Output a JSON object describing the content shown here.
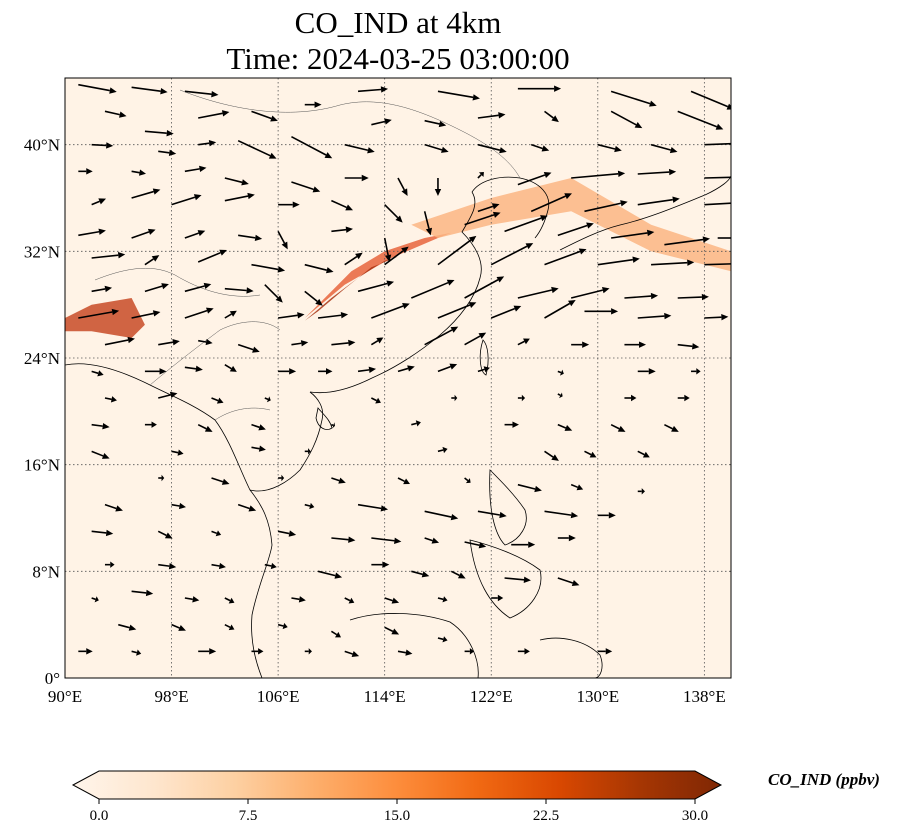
{
  "title": {
    "line1": "CO_IND at 4km",
    "line2": "Time: 2024-03-25 03:00:00"
  },
  "map": {
    "lon_ticks": [
      "90°E",
      "98°E",
      "106°E",
      "114°E",
      "122°E",
      "130°E",
      "138°E"
    ],
    "lat_ticks": [
      "40°N",
      "32°N",
      "24°N",
      "16°N",
      "8°N",
      "0°"
    ],
    "extent": {
      "lon": [
        90,
        140
      ],
      "lat": [
        0,
        45
      ]
    },
    "gridlines": true
  },
  "colorbar": {
    "label": "CO_IND (ppbv)",
    "ticks": [
      "0.0",
      "7.5",
      "15.0",
      "22.5",
      "30.0"
    ],
    "range": [
      0,
      30
    ],
    "extend": "both",
    "colormap": [
      "#fff5eb",
      "#fee6ce",
      "#fdd0a2",
      "#fdae6b",
      "#fd8d3c",
      "#f16913",
      "#d94801",
      "#a63603",
      "#7f2704"
    ]
  },
  "field": {
    "plume_polygons": [
      {
        "name": "main-plume",
        "color": "#e8643c",
        "lonlat": [
          [
            108,
            27
          ],
          [
            111,
            29.5
          ],
          [
            114.5,
            31.5
          ],
          [
            118,
            33
          ],
          [
            119,
            33.4
          ],
          [
            117,
            33
          ],
          [
            114,
            32
          ],
          [
            111.5,
            30.5
          ],
          [
            109,
            28
          ]
        ]
      },
      {
        "name": "main-plume-core",
        "color": "#a83212",
        "lonlat": [
          [
            108,
            26.8
          ],
          [
            110,
            28.5
          ],
          [
            112,
            30
          ],
          [
            114,
            31.3
          ],
          [
            115,
            31.6
          ],
          [
            113,
            30.8
          ],
          [
            111,
            29.2
          ],
          [
            109,
            27.5
          ]
        ]
      },
      {
        "name": "sichuan-west",
        "color": "#c84a26",
        "lonlat": [
          [
            90,
            27
          ],
          [
            92,
            28
          ],
          [
            95,
            28.5
          ],
          [
            96,
            26.5
          ],
          [
            95,
            25.5
          ],
          [
            92,
            26
          ],
          [
            90,
            26
          ]
        ]
      },
      {
        "name": "east-band",
        "color": "#fbb583",
        "lonlat": [
          [
            116,
            34
          ],
          [
            122,
            36
          ],
          [
            128,
            37.5
          ],
          [
            134,
            34
          ],
          [
            140,
            32
          ],
          [
            140,
            30.5
          ],
          [
            134,
            32
          ],
          [
            128,
            35
          ],
          [
            122,
            34
          ],
          [
            118,
            33
          ]
        ]
      }
    ]
  },
  "winds": {
    "vectors": [
      [
        91,
        44.5,
        3.2,
        -0.6
      ],
      [
        95,
        44.3,
        3.0,
        -0.4
      ],
      [
        99,
        44,
        2.8,
        -0.3
      ],
      [
        112,
        44,
        2.5,
        0.2
      ],
      [
        118,
        44,
        3.5,
        -0.6
      ],
      [
        124,
        44.2,
        3.6,
        0
      ],
      [
        131,
        44,
        3.8,
        -1.2
      ],
      [
        137,
        44,
        3.6,
        -1.5
      ],
      [
        93,
        42.5,
        1.8,
        -0.4
      ],
      [
        96,
        41,
        2.4,
        -0.2
      ],
      [
        100,
        42,
        2.6,
        0.5
      ],
      [
        104,
        42.5,
        2.2,
        -0.8
      ],
      [
        108,
        43,
        1.4,
        0
      ],
      [
        113,
        41.5,
        1.7,
        0.4
      ],
      [
        117,
        41.8,
        1.8,
        -0.4
      ],
      [
        121,
        42,
        2.3,
        0.3
      ],
      [
        126,
        42.5,
        1.2,
        -0.9
      ],
      [
        131,
        42.5,
        2.6,
        -1.4
      ],
      [
        136,
        42.5,
        3.8,
        -1.5
      ],
      [
        92,
        40,
        1.8,
        -0.1
      ],
      [
        97,
        39.5,
        1.5,
        -0.2
      ],
      [
        100,
        40,
        1.5,
        0.2
      ],
      [
        103,
        40.3,
        3.2,
        -1.5
      ],
      [
        107,
        40.6,
        3.4,
        -1.8
      ],
      [
        111,
        40,
        2.5,
        -0.6
      ],
      [
        117,
        40,
        2.0,
        -0.6
      ],
      [
        121,
        40,
        2.4,
        -0.6
      ],
      [
        125,
        40,
        1.5,
        -0.5
      ],
      [
        130,
        40,
        2.0,
        -0.5
      ],
      [
        134,
        40,
        2.2,
        -0.6
      ],
      [
        138,
        40,
        2.8,
        0.1
      ],
      [
        91,
        38,
        1.2,
        0
      ],
      [
        95,
        38,
        1.2,
        -0.2
      ],
      [
        99,
        38,
        1.8,
        0.3
      ],
      [
        102,
        37.5,
        2.0,
        -0.5
      ],
      [
        107,
        37.2,
        2.4,
        -0.8
      ],
      [
        111,
        37.5,
        2.0,
        0
      ],
      [
        115,
        37.5,
        0.8,
        -1.5
      ],
      [
        118,
        37.5,
        0,
        -1.5
      ],
      [
        121,
        37.5,
        0.5,
        0.5
      ],
      [
        124,
        37,
        2.8,
        1.0
      ],
      [
        128,
        37.5,
        4.5,
        0.4
      ],
      [
        133,
        37.8,
        3.2,
        0.2
      ],
      [
        138,
        37.5,
        3.8,
        0.1
      ],
      [
        92,
        35.5,
        1.2,
        0.5
      ],
      [
        95,
        36,
        2.4,
        0.7
      ],
      [
        98,
        35.5,
        2.5,
        0.8
      ],
      [
        102,
        35.8,
        2.5,
        0.5
      ],
      [
        106,
        35.5,
        1.8,
        0
      ],
      [
        110,
        35.8,
        1.8,
        -0.8
      ],
      [
        114,
        35.5,
        1.5,
        -1.5
      ],
      [
        117,
        35,
        0.5,
        -2.0
      ],
      [
        121,
        35,
        1.8,
        0.6
      ],
      [
        125,
        35,
        3.4,
        1.5
      ],
      [
        129,
        35,
        3.6,
        0.8
      ],
      [
        133,
        35.5,
        3.5,
        0.5
      ],
      [
        138,
        35.5,
        3.6,
        0.2
      ],
      [
        91,
        33.2,
        2.3,
        0.4
      ],
      [
        95,
        33,
        2.0,
        0.7
      ],
      [
        99,
        33,
        1.7,
        0.6
      ],
      [
        103,
        33.2,
        2.0,
        -0.3
      ],
      [
        106,
        33.5,
        0.8,
        -1.5
      ],
      [
        110,
        33.5,
        1.8,
        0.2
      ],
      [
        114,
        33,
        0.4,
        -2.0
      ],
      [
        120,
        34,
        3.0,
        1.0
      ],
      [
        123,
        33.5,
        3.6,
        1.3
      ],
      [
        127,
        33.2,
        3.0,
        1.0
      ],
      [
        131,
        33,
        3.6,
        0.5
      ],
      [
        135,
        32.5,
        3.8,
        0.5
      ],
      [
        139,
        33,
        1.8,
        0
      ],
      [
        92,
        31.5,
        2.8,
        0.3
      ],
      [
        96,
        31,
        1.2,
        0.8
      ],
      [
        100,
        31.2,
        2.4,
        1.0
      ],
      [
        104,
        31,
        2.8,
        -0.5
      ],
      [
        108,
        31,
        2.4,
        -0.6
      ],
      [
        111,
        31,
        1.5,
        1.0
      ],
      [
        114,
        31,
        2.0,
        1.5
      ],
      [
        118,
        31,
        3.2,
        2.4
      ],
      [
        122,
        31,
        3.5,
        1.8
      ],
      [
        126,
        31,
        3.5,
        1.3
      ],
      [
        130,
        31,
        3.5,
        0.5
      ],
      [
        134,
        31,
        3.6,
        0.2
      ],
      [
        138,
        31,
        3.4,
        0.1
      ],
      [
        92,
        29,
        1.7,
        0.3
      ],
      [
        96,
        29,
        2.0,
        0.6
      ],
      [
        99,
        29,
        2.2,
        0.6
      ],
      [
        102,
        29.2,
        2.4,
        -0.2
      ],
      [
        105,
        29.5,
        1.5,
        -1.5
      ],
      [
        108,
        29,
        1.5,
        -1.2
      ],
      [
        112,
        29,
        3.0,
        0.8
      ],
      [
        116,
        28.5,
        3.6,
        1.5
      ],
      [
        120,
        28.5,
        3.3,
        1.8
      ],
      [
        124,
        28.5,
        3.4,
        0.8
      ],
      [
        128,
        28.5,
        3.2,
        0.8
      ],
      [
        132,
        28.5,
        2.8,
        0.2
      ],
      [
        136,
        28.5,
        2.6,
        0.1
      ],
      [
        91,
        27,
        3.4,
        0.6
      ],
      [
        95,
        27,
        2.4,
        0.5
      ],
      [
        99,
        27,
        2.4,
        0.8
      ],
      [
        102,
        27,
        1.0,
        0.6
      ],
      [
        106,
        27,
        2.2,
        0.3
      ],
      [
        109,
        27,
        2.5,
        0.3
      ],
      [
        113,
        27,
        3.2,
        1.2
      ],
      [
        118,
        27,
        3.2,
        1.3
      ],
      [
        122,
        27,
        2.5,
        1.0
      ],
      [
        126,
        27,
        2.6,
        1.5
      ],
      [
        129,
        27.5,
        2.8,
        0
      ],
      [
        133,
        27,
        2.8,
        0.2
      ],
      [
        138,
        27,
        2.0,
        0.1
      ],
      [
        93,
        25,
        2.5,
        0.5
      ],
      [
        97,
        25,
        1.8,
        0.3
      ],
      [
        100,
        25.3,
        1.2,
        -0.2
      ],
      [
        103,
        25,
        1.8,
        -0.6
      ],
      [
        107,
        25,
        1.4,
        0.2
      ],
      [
        110,
        25,
        2.0,
        0.2
      ],
      [
        113,
        25,
        1.0,
        0.6
      ],
      [
        117,
        25,
        2.8,
        1.5
      ],
      [
        120,
        25,
        1.8,
        1.0
      ],
      [
        124,
        25,
        1.0,
        0.5
      ],
      [
        128,
        25,
        1.5,
        0
      ],
      [
        132,
        25,
        1.8,
        0
      ],
      [
        136,
        25,
        1.8,
        -0.2
      ],
      [
        92,
        23,
        1.0,
        -0.3
      ],
      [
        96,
        23,
        1.8,
        0
      ],
      [
        99,
        23.3,
        1.5,
        -0.2
      ],
      [
        102,
        23.5,
        1.0,
        -0.6
      ],
      [
        106,
        23,
        1.5,
        0
      ],
      [
        109,
        23,
        1.2,
        0
      ],
      [
        112,
        23,
        1.5,
        0.2
      ],
      [
        115,
        23,
        1.4,
        0.4
      ],
      [
        118,
        23,
        1.6,
        0.6
      ],
      [
        121,
        23,
        1.0,
        0.3
      ],
      [
        127,
        23,
        0.5,
        -0.2
      ],
      [
        133,
        23,
        1.5,
        0
      ],
      [
        137,
        23,
        0.8,
        0
      ],
      [
        93,
        21,
        1.0,
        -0.2
      ],
      [
        97,
        21,
        1.6,
        0.4
      ],
      [
        101,
        21,
        1.0,
        -0.4
      ],
      [
        105,
        21,
        0.5,
        -0.2
      ],
      [
        113,
        21,
        0.8,
        -0.4
      ],
      [
        119,
        21,
        0.5,
        0
      ],
      [
        124,
        21,
        0.6,
        0
      ],
      [
        127,
        21.3,
        0.4,
        -0.2
      ],
      [
        132,
        21,
        1.0,
        0
      ],
      [
        136,
        21,
        1.0,
        0
      ],
      [
        92,
        19,
        1.5,
        -0.2
      ],
      [
        96,
        19,
        1.0,
        0
      ],
      [
        100,
        19,
        1.2,
        -0.6
      ],
      [
        104,
        19,
        1.2,
        -0.4
      ],
      [
        110,
        19,
        0.3,
        -0.1
      ],
      [
        116,
        19,
        0.8,
        0.2
      ],
      [
        123,
        19,
        1.2,
        0
      ],
      [
        127,
        19,
        1.2,
        -0.5
      ],
      [
        131,
        19,
        1.2,
        -0.6
      ],
      [
        135,
        19,
        1.2,
        -0.6
      ],
      [
        92,
        17,
        1.5,
        -0.6
      ],
      [
        98,
        17,
        1.0,
        -0.2
      ],
      [
        104,
        17.3,
        1.2,
        -0.2
      ],
      [
        108,
        17,
        0.5,
        0
      ],
      [
        118,
        17,
        0.8,
        0.2
      ],
      [
        126,
        17,
        1.2,
        -0.8
      ],
      [
        129,
        17,
        1.0,
        -0.5
      ],
      [
        133,
        17,
        1.0,
        -0.5
      ],
      [
        97,
        15,
        0.5,
        0
      ],
      [
        101,
        15,
        1.5,
        -0.5
      ],
      [
        106,
        15,
        0.5,
        0
      ],
      [
        110,
        15,
        1.2,
        -0.4
      ],
      [
        115,
        15,
        1.0,
        -0.5
      ],
      [
        120,
        15,
        0.5,
        -0.4
      ],
      [
        124,
        14.5,
        2.0,
        -0.5
      ],
      [
        128,
        14.5,
        1.0,
        -0.4
      ],
      [
        133,
        14,
        0.6,
        0
      ],
      [
        93,
        13,
        1.5,
        -0.5
      ],
      [
        98,
        13,
        1.2,
        -0.2
      ],
      [
        103,
        13,
        1.5,
        -0.5
      ],
      [
        108,
        13,
        0.8,
        -0.2
      ],
      [
        112,
        13,
        2.5,
        -0.4
      ],
      [
        117,
        12.5,
        2.8,
        -0.6
      ],
      [
        121,
        12.5,
        2.4,
        -0.4
      ],
      [
        126,
        12.5,
        2.8,
        -0.4
      ],
      [
        130,
        12.2,
        1.5,
        0
      ],
      [
        92,
        11,
        1.8,
        -0.2
      ],
      [
        97,
        11,
        1.2,
        -0.6
      ],
      [
        101,
        11,
        0.8,
        -0.3
      ],
      [
        106,
        11,
        1.5,
        -0.3
      ],
      [
        110,
        10.5,
        2.0,
        -0.2
      ],
      [
        113,
        10.5,
        2.5,
        -0.3
      ],
      [
        117,
        10.5,
        1.2,
        -0.4
      ],
      [
        120,
        10.2,
        1.8,
        -0.4
      ],
      [
        123.5,
        10,
        2.0,
        0
      ],
      [
        127,
        10.5,
        1.5,
        0
      ],
      [
        93,
        8.5,
        0.8,
        0
      ],
      [
        97,
        8.5,
        1.5,
        -0.2
      ],
      [
        101,
        8.5,
        1.2,
        -0.2
      ],
      [
        105,
        8.5,
        1.0,
        -0.2
      ],
      [
        109,
        8,
        2.0,
        -0.5
      ],
      [
        113,
        8.5,
        1.5,
        0
      ],
      [
        116,
        8,
        1.5,
        -0.4
      ],
      [
        119,
        8,
        1.2,
        -0.6
      ],
      [
        123,
        7.5,
        2.2,
        -0.2
      ],
      [
        127,
        7.5,
        1.8,
        -0.6
      ],
      [
        92,
        6,
        0.6,
        -0.2
      ],
      [
        95,
        6.5,
        1.8,
        -0.2
      ],
      [
        99,
        6,
        1.2,
        -0.2
      ],
      [
        102,
        6,
        0.8,
        -0.4
      ],
      [
        107,
        6,
        1.2,
        -0.2
      ],
      [
        111,
        6,
        0.8,
        -0.4
      ],
      [
        114,
        6,
        1.2,
        -0.4
      ],
      [
        118,
        6,
        0.8,
        -0.2
      ],
      [
        122,
        6,
        1.0,
        0
      ],
      [
        94,
        4,
        1.5,
        -0.4
      ],
      [
        98,
        4,
        1.2,
        -0.5
      ],
      [
        102,
        4,
        0.8,
        -0.4
      ],
      [
        106,
        4,
        0.8,
        -0.2
      ],
      [
        110,
        3.5,
        0.8,
        -0.5
      ],
      [
        114,
        3.8,
        1.2,
        -0.6
      ],
      [
        118,
        3,
        0.8,
        -0.2
      ],
      [
        91,
        2,
        1.2,
        0
      ],
      [
        95,
        2,
        0.8,
        -0.2
      ],
      [
        100,
        2,
        1.5,
        0
      ],
      [
        104,
        2,
        1.0,
        0
      ],
      [
        108,
        2,
        0.6,
        0
      ],
      [
        111,
        2,
        1.2,
        -0.4
      ],
      [
        115,
        2,
        1.2,
        -0.2
      ],
      [
        120,
        2,
        0.8,
        0
      ],
      [
        124,
        2,
        1.0,
        0
      ],
      [
        130,
        2,
        1.2,
        0
      ]
    ]
  }
}
